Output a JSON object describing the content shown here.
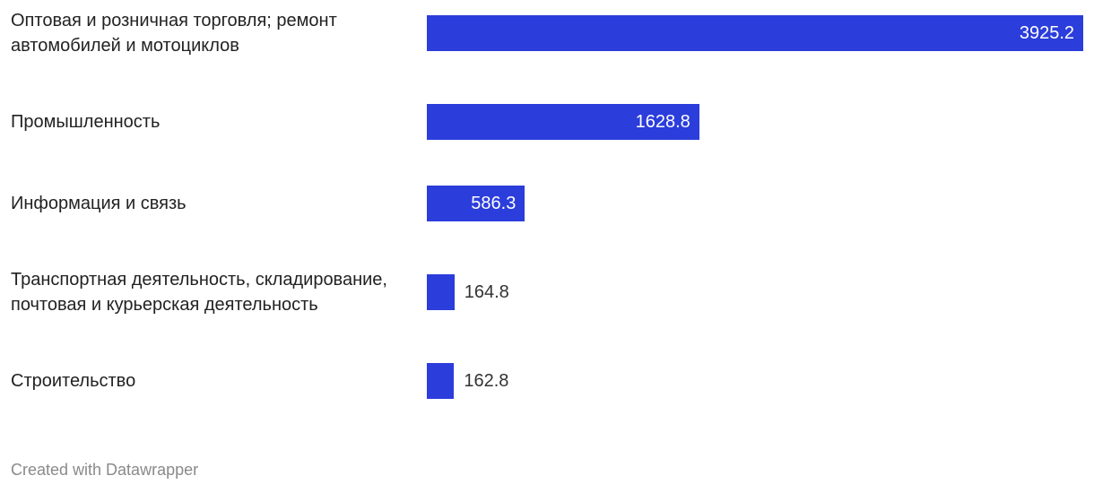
{
  "chart_data": {
    "type": "bar",
    "categories": [
      "Оптовая и розничная торговля; ремонт автомобилей и мотоциклов",
      "Промышленность",
      "Информация и связь",
      "Транспортная деятельность, складирование, почтовая и курьерская деятельность",
      "Строительство"
    ],
    "values": [
      3925.2,
      1628.8,
      586.3,
      164.8,
      162.8
    ],
    "color": "#2b3ddb",
    "credit": "Created with Datawrapper"
  }
}
